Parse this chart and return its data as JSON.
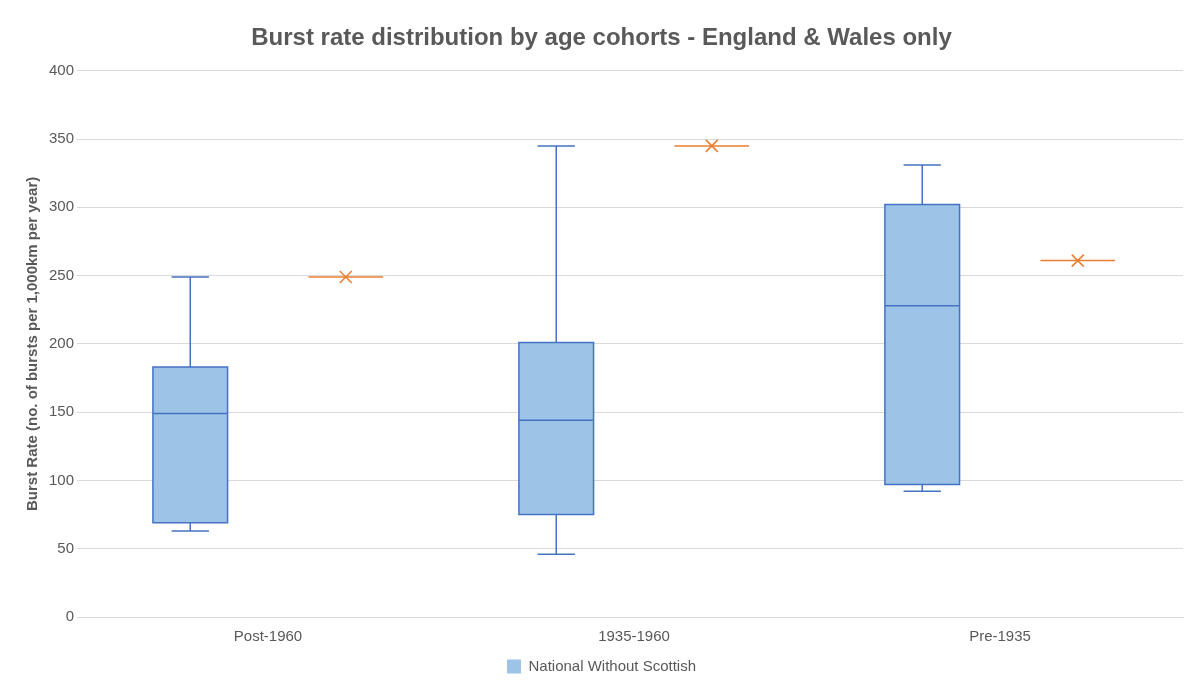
{
  "chart_data": {
    "type": "box",
    "title": "Burst rate distribution by age cohorts - England & Wales only",
    "ylabel": "Burst Rate (no. of bursts per 1,000km per year)",
    "categories": [
      "Post-1960",
      "1935-1960",
      "Pre-1935"
    ],
    "ylim": [
      0,
      400
    ],
    "yticks": [
      0,
      50,
      100,
      150,
      200,
      250,
      300,
      350,
      400
    ],
    "grid": "y",
    "legend": "bottom",
    "series": [
      {
        "name": "National Without Scottish",
        "color": "#9dc3e6",
        "boxes": [
          {
            "low": 63,
            "q1": 69,
            "median": 149,
            "q3": 183,
            "high": 249
          },
          {
            "low": 46,
            "q1": 75,
            "median": 144,
            "q3": 201,
            "high": 345
          },
          {
            "low": 92,
            "q1": 97,
            "median": 228,
            "q3": 302,
            "high": 331
          }
        ]
      },
      {
        "color": "#ed7d31",
        "marker": "cross",
        "boxes": [
          {
            "low": 249,
            "q1": 249,
            "median": 249,
            "q3": 249,
            "high": 249,
            "mean": 249
          },
          {
            "low": 345,
            "q1": 345,
            "median": 345,
            "q3": 345,
            "high": 345,
            "mean": 345
          },
          {
            "low": 261,
            "q1": 261,
            "median": 261,
            "q3": 261,
            "high": 261,
            "mean": 261
          }
        ]
      }
    ]
  }
}
